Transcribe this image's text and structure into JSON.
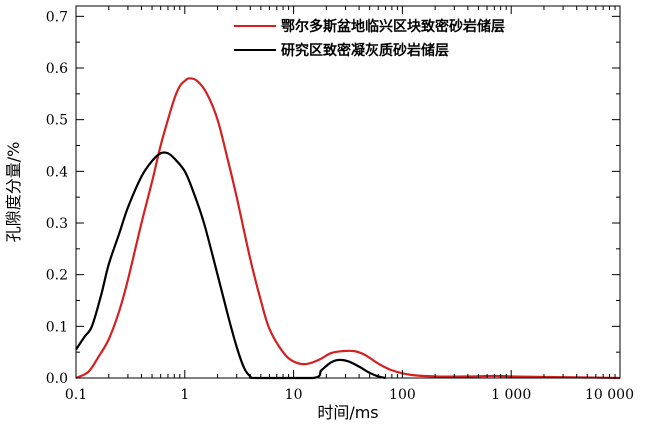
{
  "chart_data": {
    "type": "line",
    "xlabel": "时间/ms",
    "ylabel": "孔隙度分量/%",
    "x_scale": "log",
    "xlim": [
      0.1,
      10000
    ],
    "ylim": [
      0,
      0.72
    ],
    "x_ticks": [
      {
        "value": 0.1,
        "label": "0.1"
      },
      {
        "value": 1,
        "label": "1"
      },
      {
        "value": 10,
        "label": "10"
      },
      {
        "value": 100,
        "label": "100"
      },
      {
        "value": 1000,
        "label": "1 000"
      },
      {
        "value": 10000,
        "label": "10 000"
      }
    ],
    "y_ticks": [
      {
        "value": 0.0,
        "label": "0.0"
      },
      {
        "value": 0.1,
        "label": "0.1"
      },
      {
        "value": 0.2,
        "label": "0.2"
      },
      {
        "value": 0.3,
        "label": "0.3"
      },
      {
        "value": 0.4,
        "label": "0.4"
      },
      {
        "value": 0.5,
        "label": "0.5"
      },
      {
        "value": 0.6,
        "label": "0.6"
      },
      {
        "value": 0.7,
        "label": "0.7"
      }
    ],
    "grid": false,
    "legend_position": "top-right",
    "series": [
      {
        "name": "鄂尔多斯盆地临兴区块致密砂岩储层",
        "color": "#d42020",
        "points": [
          [
            0.1,
            0.0
          ],
          [
            0.13,
            0.012
          ],
          [
            0.16,
            0.04
          ],
          [
            0.2,
            0.075
          ],
          [
            0.25,
            0.13
          ],
          [
            0.3,
            0.19
          ],
          [
            0.4,
            0.3
          ],
          [
            0.5,
            0.38
          ],
          [
            0.6,
            0.45
          ],
          [
            0.7,
            0.5
          ],
          [
            0.8,
            0.54
          ],
          [
            0.9,
            0.565
          ],
          [
            1.0,
            0.575
          ],
          [
            1.1,
            0.58
          ],
          [
            1.3,
            0.575
          ],
          [
            1.6,
            0.55
          ],
          [
            2.0,
            0.5
          ],
          [
            2.5,
            0.42
          ],
          [
            3.0,
            0.35
          ],
          [
            4.0,
            0.23
          ],
          [
            5.0,
            0.15
          ],
          [
            6.0,
            0.095
          ],
          [
            8.0,
            0.05
          ],
          [
            10.0,
            0.032
          ],
          [
            13.0,
            0.027
          ],
          [
            17.0,
            0.035
          ],
          [
            22.0,
            0.048
          ],
          [
            28.0,
            0.052
          ],
          [
            36.0,
            0.052
          ],
          [
            45.0,
            0.045
          ],
          [
            60.0,
            0.028
          ],
          [
            80.0,
            0.015
          ],
          [
            120.0,
            0.006
          ],
          [
            200.0,
            0.003
          ],
          [
            400.0,
            0.003
          ],
          [
            700.0,
            0.004
          ],
          [
            1000.0,
            0.003
          ],
          [
            2000.0,
            0.002
          ],
          [
            5000.0,
            0.001
          ],
          [
            10000.0,
            0.0
          ]
        ]
      },
      {
        "name": "研究区致密凝灰质砂岩储层",
        "color": "#000000",
        "points": [
          [
            0.1,
            0.055
          ],
          [
            0.12,
            0.08
          ],
          [
            0.14,
            0.1
          ],
          [
            0.17,
            0.16
          ],
          [
            0.2,
            0.22
          ],
          [
            0.25,
            0.28
          ],
          [
            0.3,
            0.33
          ],
          [
            0.4,
            0.39
          ],
          [
            0.5,
            0.42
          ],
          [
            0.6,
            0.435
          ],
          [
            0.7,
            0.435
          ],
          [
            0.8,
            0.425
          ],
          [
            1.0,
            0.4
          ],
          [
            1.2,
            0.36
          ],
          [
            1.5,
            0.3
          ],
          [
            2.0,
            0.2
          ],
          [
            2.5,
            0.12
          ],
          [
            3.0,
            0.06
          ],
          [
            3.5,
            0.02
          ],
          [
            4.0,
            0.003
          ],
          [
            4.5,
            0.0
          ],
          [
            15.0,
            0.0
          ],
          [
            18.0,
            0.015
          ],
          [
            22.0,
            0.03
          ],
          [
            26.0,
            0.035
          ],
          [
            32.0,
            0.032
          ],
          [
            40.0,
            0.022
          ],
          [
            50.0,
            0.01
          ],
          [
            60.0,
            0.003
          ],
          [
            70.0,
            0.0
          ]
        ]
      }
    ]
  }
}
